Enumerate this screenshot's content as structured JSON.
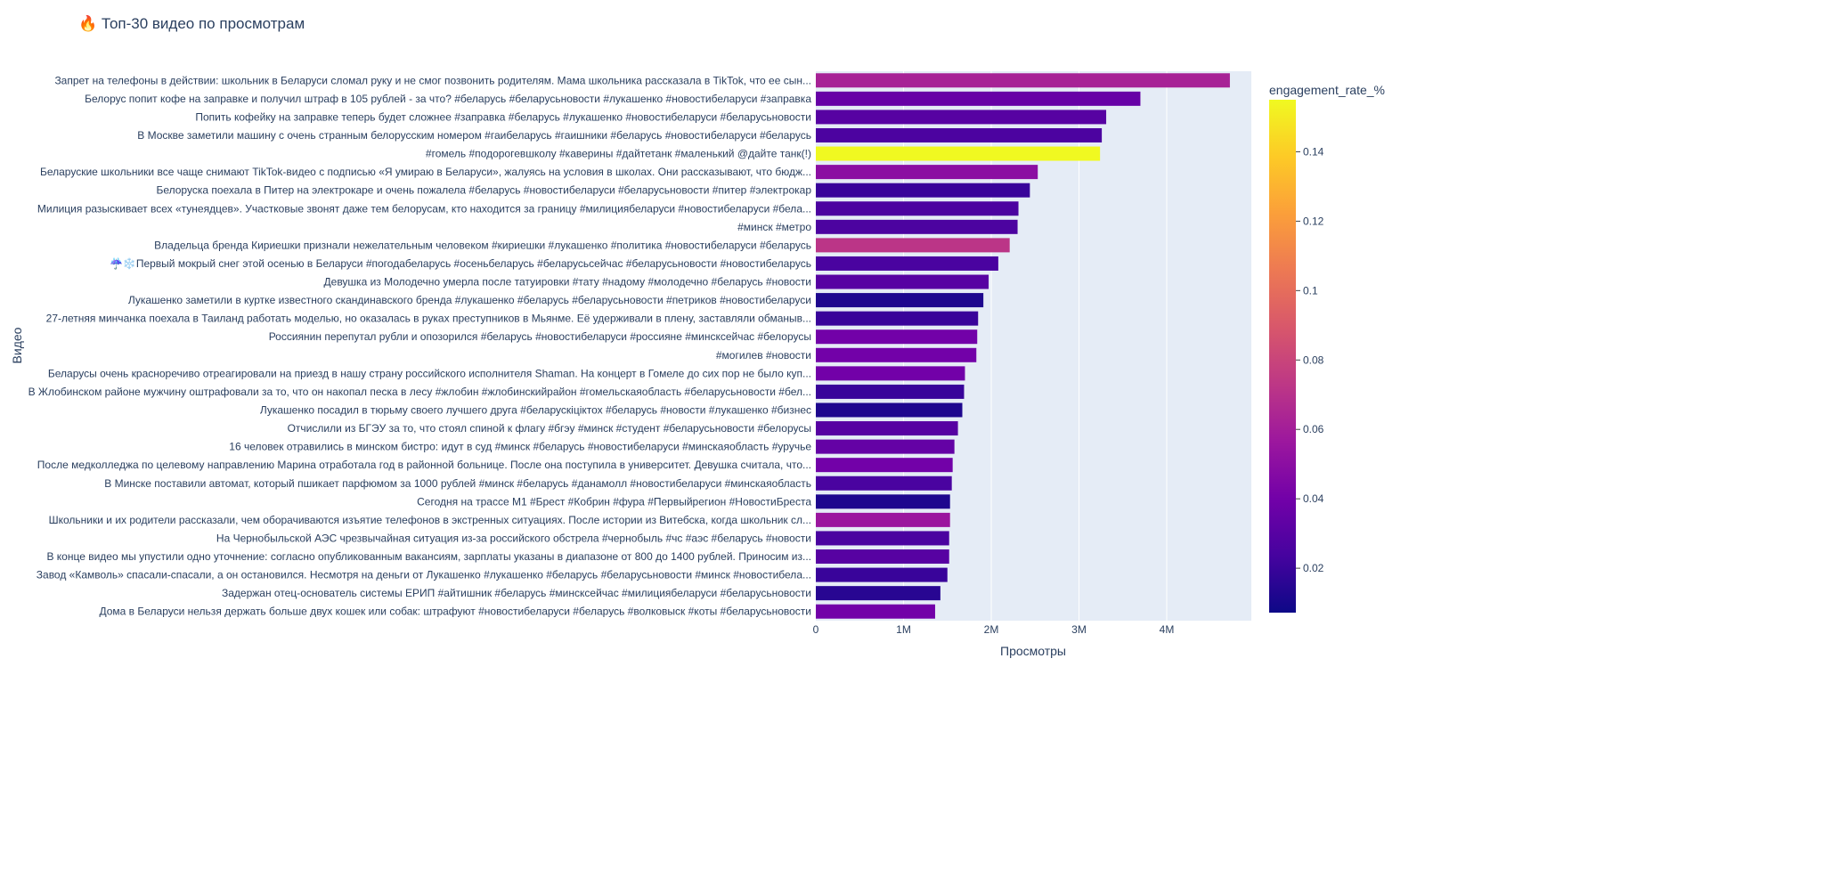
{
  "chart_data": {
    "type": "bar",
    "orientation": "horizontal",
    "title": "🔥 Топ-30 видео по просмотрам",
    "xlabel": "Просмотры",
    "ylabel": "Видео",
    "xlim": [
      0,
      4950000
    ],
    "xticks": [
      0,
      1000000,
      2000000,
      3000000,
      4000000
    ],
    "xtick_labels": [
      "0",
      "1M",
      "2M",
      "3M",
      "4M"
    ],
    "grid": true,
    "colorbar": {
      "title": "engagement_rate_%",
      "range": [
        0.0072,
        0.155
      ],
      "ticks": [
        0.02,
        0.04,
        0.06,
        0.08,
        0.1,
        0.12,
        0.14
      ],
      "tick_labels": [
        "0.02",
        "0.04",
        "0.06",
        "0.08",
        "0.1",
        "0.12",
        "0.14"
      ],
      "colorscale": "plasma",
      "placement": "right"
    },
    "categories": [
      "Запрет на телефоны в действии: школьник в Беларуси сломал руку и не смог позвонить родителям. Мама школьника рассказала в TikTok, что ее сын...",
      "Белорус попит кофе на заправке и получил штраф в 105 рублей - за что? #беларусь #беларусьновости #лукашенко #новостибеларуси #заправка",
      "Попить кофейку на заправке теперь будет сложнее #заправка #беларусь #лукашенко #новостибеларуси #беларусьновости",
      "В Москве заметили машину с очень странным белорусским номером #гаибеларусь #гаишники #беларусь #новостибеларуси #беларусь",
      "#гомель #подорогевшколу #каверины #дайтетанк #маленький @дайте танк(!)",
      "Беларуские школьники все чаще снимают TikTok-видео с подписью «Я умираю в Беларуси», жалуясь на условия в школах. Они рассказывают, что бюдж...",
      "Белоруска поехала в Питер на электрокаре и очень пожалела #беларусь #новостибеларуси #беларусьновости #питер #электрокар",
      "Милиция разыскивает всех «тунеядцев». Участковые звонят даже тем белорусам, кто находится за границу #милициябеларуси #новостибеларуси #бела...",
      "#минск #метро",
      "Владельца бренда Кириешки признали нежелательным человеком #кириешки #лукашенко #политика #новостибеларуси #беларусь",
      "☔❄️Первый мокрый снег этой осенью в Беларуси #погодабеларусь #осеньбеларусь #беларусьсейчас #беларусьновости #новостибеларусь",
      "Девушка из Молодечно умерла после татуировки #тату #надому #молодечно #беларусь #новости",
      "Лукашенко заметили в куртке известного скандинавского бренда #лукашенко #беларусь #беларусьновости #петриков #новостибеларуси",
      "27-летняя минчанка поехала в Таиланд работать моделью, но оказалась в руках преступников в Мьянме. Её удерживали в плену, заставляли обманыв...",
      "Россиянин перепутал рубли и опозорился #беларусь #новостибеларуси #россияне #минсксейчас #белорусы",
      "#могилев #новости",
      "Беларусы очень красноречиво отреагировали на приезд в нашу страну российского исполнителя Shaman. На концерт в Гомеле до сих пор не было куп...",
      "В Жлобинском районе мужчину оштрафовали за то, что он накопал песка в лесу #жлобин #жлобинскийрайон #гомельскаяобласть #беларусьновости #бел...",
      "Лукашенко посадил в тюрьму своего лучшего друга #беларускіціктох #беларусь #новости #лукашенко #бизнес",
      "Отчислили из БГЭУ за то, что стоял спиной к флагу #бгэу #минск #студент #беларусьновости #белорусы",
      "16 человек отравились в минском бистро: идут в суд #минск #беларусь #новостибеларуси #минскаяобласть #уручье",
      "После медколледжа по целевому направлению Марина отработала год в районной больнице. После она поступила в университет. Девушка считала, что...",
      "В Минске поставили автомат, который пшикает парфюмом за 1000 рублей #минск #беларусь #данамолл #новостибеларуси #минскаяобласть",
      "Сегодня на трассе М1 #Брест #Кобрин #фура #Первыйрегион #НовостиБреста",
      "Школьники и их родители рассказали, чем оборачиваются изъятие телефонов в экстренных ситуациях. После истории из Витебска, когда школьник сл...",
      "На Чернобыльской АЭС чрезвычайная ситуация из-за российского обстрела #чернобыль #чс #аэс #беларусь #новости",
      "В конце видео мы упустили одно уточнение: согласно опубликованным вакансиям, зарплаты указаны в диапазоне от 800 до 1400 рублей. Приносим из...",
      "Завод «Камволь» спасали-спасали, а он остановился. Несмотря на деньги от Лукашенко #лукашенко #беларусь #беларусьновости #минск #новостибела...",
      "Задержан отец-основатель системы ЕРИП #айтишник #беларусь #минсксейчас #милициябеларуси #беларусьновости",
      "Дома в Беларуси нельзя держать больше двух кошек или собак: штрафуют #новостибеларуси #беларусь #волковыск #коты #беларусьновости"
    ],
    "values": [
      4720000,
      3700000,
      3310000,
      3260000,
      3240000,
      2530000,
      2440000,
      2310000,
      2300000,
      2210000,
      2080000,
      1970000,
      1910000,
      1850000,
      1840000,
      1830000,
      1700000,
      1690000,
      1670000,
      1620000,
      1580000,
      1560000,
      1550000,
      1530000,
      1530000,
      1520000,
      1520000,
      1500000,
      1420000,
      1360000
    ],
    "engagement_rate_pct": [
      0.062,
      0.036,
      0.03,
      0.026,
      0.155,
      0.05,
      0.02,
      0.026,
      0.026,
      0.072,
      0.025,
      0.03,
      0.012,
      0.02,
      0.04,
      0.04,
      0.04,
      0.02,
      0.012,
      0.03,
      0.035,
      0.04,
      0.025,
      0.012,
      0.056,
      0.025,
      0.03,
      0.02,
      0.015,
      0.04
    ]
  }
}
